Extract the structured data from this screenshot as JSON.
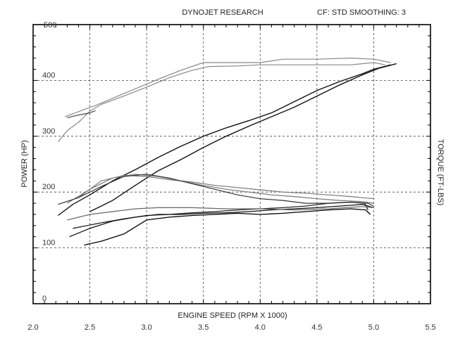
{
  "header": {
    "title": "DYNOJET RESEARCH",
    "settings": "CF: STD SMOOTHING: 3"
  },
  "chart_data": {
    "type": "line",
    "title": "DYNOJET RESEARCH",
    "subtitle": "CF: STD SMOOTHING: 3",
    "xlabel": "ENGINE SPEED (RPM X 1000)",
    "ylabel_left": "POWER (HP)",
    "ylabel_right": "TORQUE (FT-LBS)",
    "xlim": [
      2.0,
      5.5
    ],
    "ylim": [
      0,
      500
    ],
    "x_ticks": [
      "2.0",
      "2.5",
      "3.0",
      "3.5",
      "4.0",
      "4.5",
      "5.0",
      "5.5"
    ],
    "y_ticks": [
      "0",
      "100",
      "200",
      "300",
      "400",
      "500"
    ],
    "grid": true,
    "series": [
      {
        "color": "#888888",
        "width": 1.2,
        "points": [
          [
            2.22,
            290
          ],
          [
            2.3,
            310
          ],
          [
            2.4,
            325
          ],
          [
            2.5,
            345
          ],
          [
            2.6,
            357
          ],
          [
            2.8,
            372
          ],
          [
            3.0,
            388
          ],
          [
            3.2,
            405
          ],
          [
            3.4,
            418
          ],
          [
            3.55,
            425
          ],
          [
            3.8,
            426
          ],
          [
            4.0,
            428
          ],
          [
            4.3,
            428
          ],
          [
            4.6,
            428
          ],
          [
            4.8,
            428
          ],
          [
            5.0,
            432
          ],
          [
            5.1,
            428
          ]
        ]
      },
      {
        "color": "#888888",
        "width": 1.2,
        "points": [
          [
            2.28,
            335
          ],
          [
            2.35,
            340
          ],
          [
            2.45,
            348
          ],
          [
            2.55,
            355
          ],
          [
            2.7,
            368
          ],
          [
            2.9,
            385
          ],
          [
            3.1,
            402
          ],
          [
            3.3,
            418
          ],
          [
            3.5,
            432
          ],
          [
            3.8,
            432
          ],
          [
            4.0,
            432
          ],
          [
            4.2,
            438
          ],
          [
            4.5,
            438
          ],
          [
            4.8,
            440
          ],
          [
            5.0,
            438
          ],
          [
            5.15,
            432
          ]
        ]
      },
      {
        "color": "#444444",
        "width": 1.2,
        "points": [
          [
            2.3,
            333
          ],
          [
            2.4,
            338
          ],
          [
            2.5,
            342
          ],
          [
            2.55,
            346
          ]
        ]
      },
      {
        "color": "#111111",
        "width": 1.4,
        "points": [
          [
            2.22,
            158
          ],
          [
            2.35,
            178
          ],
          [
            2.5,
            195
          ],
          [
            2.7,
            220
          ],
          [
            2.9,
            240
          ],
          [
            3.1,
            262
          ],
          [
            3.3,
            282
          ],
          [
            3.5,
            300
          ],
          [
            3.7,
            315
          ],
          [
            3.9,
            328
          ],
          [
            4.1,
            342
          ],
          [
            4.3,
            362
          ],
          [
            4.5,
            382
          ],
          [
            4.7,
            398
          ],
          [
            4.9,
            412
          ],
          [
            5.0,
            420
          ],
          [
            5.15,
            428
          ]
        ]
      },
      {
        "color": "#111111",
        "width": 1.4,
        "points": [
          [
            2.5,
            165
          ],
          [
            2.7,
            185
          ],
          [
            2.9,
            212
          ],
          [
            3.1,
            238
          ],
          [
            3.3,
            258
          ],
          [
            3.5,
            280
          ],
          [
            3.7,
            300
          ],
          [
            3.9,
            318
          ],
          [
            4.1,
            335
          ],
          [
            4.3,
            352
          ],
          [
            4.5,
            372
          ],
          [
            4.7,
            392
          ],
          [
            4.9,
            410
          ],
          [
            5.05,
            422
          ],
          [
            5.2,
            430
          ]
        ]
      },
      {
        "color": "#777777",
        "width": 1.2,
        "points": [
          [
            2.3,
            180
          ],
          [
            2.5,
            205
          ],
          [
            2.7,
            225
          ],
          [
            2.9,
            232
          ],
          [
            3.1,
            228
          ],
          [
            3.3,
            220
          ],
          [
            3.5,
            212
          ],
          [
            3.7,
            205
          ],
          [
            3.9,
            200
          ],
          [
            4.1,
            195
          ],
          [
            4.3,
            192
          ],
          [
            4.5,
            188
          ],
          [
            4.7,
            185
          ],
          [
            4.9,
            183
          ],
          [
            5.0,
            180
          ]
        ]
      },
      {
        "color": "#777777",
        "width": 1.2,
        "points": [
          [
            2.4,
            190
          ],
          [
            2.6,
            220
          ],
          [
            2.8,
            230
          ],
          [
            3.0,
            228
          ],
          [
            3.2,
            222
          ],
          [
            3.4,
            218
          ],
          [
            3.6,
            212
          ],
          [
            3.8,
            208
          ],
          [
            4.0,
            204
          ],
          [
            4.2,
            200
          ],
          [
            4.4,
            198
          ],
          [
            4.6,
            195
          ],
          [
            4.8,
            192
          ],
          [
            5.0,
            188
          ]
        ]
      },
      {
        "color": "#333333",
        "width": 1.2,
        "points": [
          [
            2.22,
            178
          ],
          [
            2.4,
            190
          ],
          [
            2.6,
            210
          ],
          [
            2.8,
            228
          ],
          [
            3.0,
            232
          ],
          [
            3.2,
            225
          ],
          [
            3.4,
            215
          ],
          [
            3.6,
            205
          ],
          [
            3.8,
            195
          ],
          [
            4.0,
            188
          ],
          [
            4.2,
            185
          ],
          [
            4.4,
            180
          ],
          [
            4.6,
            180
          ],
          [
            4.8,
            182
          ],
          [
            4.95,
            180
          ],
          [
            5.0,
            175
          ]
        ]
      },
      {
        "color": "#222222",
        "width": 1.3,
        "points": [
          [
            2.35,
            135
          ],
          [
            2.6,
            145
          ],
          [
            2.8,
            152
          ],
          [
            3.0,
            158
          ],
          [
            3.2,
            160
          ],
          [
            3.4,
            163
          ],
          [
            3.6,
            165
          ],
          [
            3.8,
            168
          ],
          [
            4.0,
            170
          ],
          [
            4.2,
            172
          ],
          [
            4.4,
            175
          ],
          [
            4.6,
            180
          ],
          [
            4.8,
            182
          ],
          [
            4.92,
            180
          ],
          [
            4.95,
            168
          ]
        ]
      },
      {
        "color": "#111111",
        "width": 1.3,
        "points": [
          [
            2.32,
            120
          ],
          [
            2.5,
            135
          ],
          [
            2.7,
            148
          ],
          [
            2.9,
            155
          ],
          [
            3.1,
            160
          ],
          [
            3.3,
            160
          ],
          [
            3.5,
            162
          ],
          [
            3.7,
            163
          ],
          [
            3.9,
            165
          ],
          [
            4.1,
            168
          ],
          [
            4.3,
            170
          ],
          [
            4.5,
            172
          ],
          [
            4.7,
            175
          ],
          [
            4.9,
            178
          ],
          [
            5.0,
            172
          ]
        ]
      },
      {
        "color": "#000000",
        "width": 1.3,
        "points": [
          [
            2.45,
            105
          ],
          [
            2.6,
            112
          ],
          [
            2.8,
            125
          ],
          [
            3.0,
            150
          ],
          [
            3.2,
            155
          ],
          [
            3.4,
            158
          ],
          [
            3.6,
            160
          ],
          [
            3.8,
            162
          ],
          [
            4.0,
            160
          ],
          [
            4.2,
            162
          ],
          [
            4.4,
            165
          ],
          [
            4.6,
            168
          ],
          [
            4.8,
            170
          ],
          [
            4.93,
            168
          ],
          [
            4.97,
            160
          ]
        ]
      },
      {
        "color": "#666666",
        "width": 1.2,
        "points": [
          [
            2.3,
            150
          ],
          [
            2.5,
            160
          ],
          [
            2.7,
            165
          ],
          [
            2.9,
            170
          ],
          [
            3.1,
            172
          ],
          [
            3.4,
            172
          ],
          [
            3.7,
            170
          ],
          [
            4.0,
            170
          ],
          [
            4.3,
            168
          ],
          [
            4.6,
            170
          ],
          [
            4.9,
            174
          ],
          [
            5.0,
            172
          ]
        ]
      }
    ]
  }
}
